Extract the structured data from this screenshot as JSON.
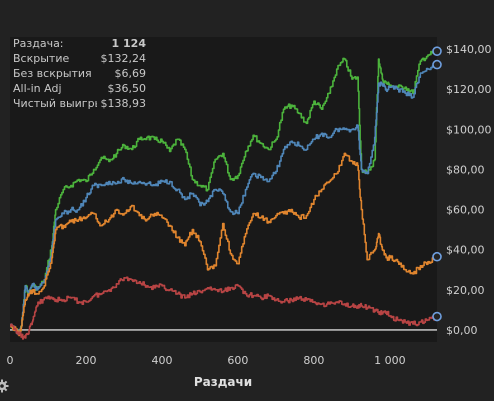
{
  "stats": [
    {
      "label": "Раздача:",
      "value": "1 124"
    },
    {
      "label": "Вскрытие",
      "value": "$132,24"
    },
    {
      "label": "Без вскрытия",
      "value": "$6,69"
    },
    {
      "label": "All-in Adj",
      "value": "$36,50"
    },
    {
      "label": "Чистый выигрыш",
      "value": "$138,93"
    }
  ],
  "colors": {
    "background": "#222222",
    "plot_background": "#191919",
    "green": "#4cb33c",
    "blue": "#4f86b8",
    "orange": "#e0852e",
    "red": "#b84444",
    "zero_line": "#d8d8d8"
  },
  "icons": {
    "settings": "gear-icon"
  },
  "chart_data": {
    "type": "line",
    "title": "",
    "xlabel": "Раздачи",
    "ylabel": "",
    "xlim": [
      0,
      1124
    ],
    "ylim": [
      -6,
      146
    ],
    "x_ticks": [
      0,
      200,
      400,
      600,
      800,
      1000
    ],
    "x_tick_labels": [
      "0",
      "200",
      "400",
      "600",
      "800",
      "1 000"
    ],
    "y_ticks": [
      0,
      20,
      40,
      60,
      80,
      100,
      120,
      140
    ],
    "y_tick_labels": [
      "$0,00",
      "$20,00",
      "$40,00",
      "$60,00",
      "$80,00",
      "$100,00",
      "$120,00",
      "$140,00"
    ],
    "grid": false,
    "series": [
      {
        "name": "Чистый выигрыш",
        "color": "#4cb33c",
        "x": [
          0,
          15,
          25,
          30,
          40,
          50,
          60,
          70,
          90,
          110,
          120,
          140,
          160,
          180,
          200,
          220,
          240,
          260,
          280,
          300,
          320,
          340,
          360,
          380,
          400,
          420,
          440,
          460,
          480,
          500,
          520,
          540,
          560,
          580,
          600,
          620,
          640,
          660,
          680,
          700,
          720,
          740,
          760,
          780,
          800,
          820,
          840,
          860,
          880,
          900,
          915,
          925,
          940,
          960,
          970,
          980,
          990,
          1000,
          1020,
          1040,
          1060,
          1080,
          1100,
          1124
        ],
        "y": [
          2,
          0,
          -2,
          2,
          22,
          18,
          23,
          20,
          25,
          42,
          60,
          70,
          72,
          75,
          74,
          80,
          86,
          84,
          88,
          92,
          90,
          95,
          96,
          95,
          94,
          89,
          95,
          90,
          75,
          72,
          70,
          85,
          88,
          75,
          77,
          89,
          97,
          93,
          90,
          95,
          110,
          112,
          108,
          103,
          114,
          110,
          118,
          130,
          135,
          125,
          126,
          80,
          78,
          85,
          135,
          125,
          123,
          122,
          121,
          121,
          118,
          134,
          137,
          138.93
        ]
      },
      {
        "name": "Вскрытие",
        "color": "#4f86b8",
        "x": [
          0,
          15,
          25,
          30,
          40,
          50,
          60,
          70,
          90,
          110,
          120,
          140,
          160,
          180,
          200,
          220,
          240,
          260,
          280,
          300,
          320,
          340,
          360,
          380,
          400,
          420,
          440,
          460,
          480,
          500,
          520,
          540,
          560,
          580,
          600,
          620,
          640,
          660,
          680,
          700,
          720,
          740,
          760,
          780,
          800,
          820,
          840,
          860,
          880,
          900,
          915,
          925,
          940,
          960,
          970,
          980,
          990,
          1000,
          1020,
          1040,
          1060,
          1080,
          1100,
          1124
        ],
        "y": [
          2,
          0,
          -2,
          2,
          22,
          18,
          23,
          20,
          25,
          40,
          55,
          58,
          60,
          60,
          66,
          72,
          72,
          74,
          73,
          75,
          73,
          74,
          73,
          72,
          74,
          74,
          70,
          65,
          68,
          62,
          64,
          70,
          68,
          59,
          58,
          70,
          78,
          76,
          74,
          79,
          90,
          94,
          92,
          90,
          95,
          98,
          96,
          100,
          100,
          100,
          102,
          80,
          78,
          96,
          123,
          122,
          120,
          121,
          120,
          118,
          116,
          128,
          130,
          132.24
        ]
      },
      {
        "name": "All-in Adj",
        "color": "#e0852e",
        "x": [
          0,
          15,
          25,
          30,
          40,
          50,
          60,
          70,
          90,
          110,
          120,
          140,
          160,
          180,
          200,
          220,
          240,
          260,
          280,
          300,
          320,
          340,
          360,
          380,
          400,
          420,
          440,
          460,
          480,
          500,
          520,
          540,
          560,
          580,
          600,
          620,
          640,
          660,
          680,
          700,
          720,
          740,
          760,
          780,
          800,
          820,
          840,
          860,
          880,
          900,
          915,
          925,
          940,
          960,
          970,
          980,
          990,
          1000,
          1020,
          1040,
          1060,
          1080,
          1100,
          1124
        ],
        "y": [
          2,
          0,
          -2,
          2,
          15,
          18,
          20,
          18,
          22,
          36,
          50,
          52,
          54,
          55,
          56,
          58,
          52,
          55,
          60,
          58,
          62,
          57,
          55,
          58,
          56,
          52,
          46,
          42,
          50,
          44,
          30,
          32,
          53,
          38,
          33,
          48,
          58,
          56,
          54,
          57,
          58,
          60,
          56,
          57,
          65,
          70,
          74,
          78,
          88,
          84,
          82,
          60,
          35,
          40,
          48,
          40,
          36,
          36,
          34,
          30,
          28,
          32,
          34,
          36.5
        ]
      },
      {
        "name": "Без вскрытия",
        "color": "#b84444",
        "x": [
          0,
          15,
          25,
          30,
          40,
          50,
          60,
          70,
          90,
          110,
          120,
          140,
          160,
          180,
          200,
          220,
          240,
          260,
          280,
          300,
          320,
          340,
          360,
          380,
          400,
          420,
          440,
          460,
          480,
          500,
          520,
          540,
          560,
          580,
          600,
          620,
          640,
          660,
          680,
          700,
          720,
          740,
          760,
          780,
          800,
          820,
          840,
          860,
          880,
          900,
          915,
          925,
          940,
          960,
          970,
          980,
          990,
          1000,
          1020,
          1040,
          1060,
          1080,
          1100,
          1124
        ],
        "y": [
          2,
          0,
          -2,
          -3,
          -4,
          0,
          5,
          12,
          16,
          16,
          15,
          15,
          16,
          14,
          14,
          17,
          18,
          20,
          23,
          26,
          25,
          24,
          22,
          21,
          22,
          20,
          18,
          16,
          18,
          19,
          21,
          20,
          19,
          21,
          22,
          18,
          17,
          16,
          17,
          15,
          14,
          15,
          16,
          15,
          14,
          13,
          13,
          14,
          13,
          12,
          12,
          12,
          11,
          10,
          9,
          8,
          9,
          7,
          5,
          4,
          3,
          4,
          5,
          6.69
        ]
      }
    ]
  }
}
